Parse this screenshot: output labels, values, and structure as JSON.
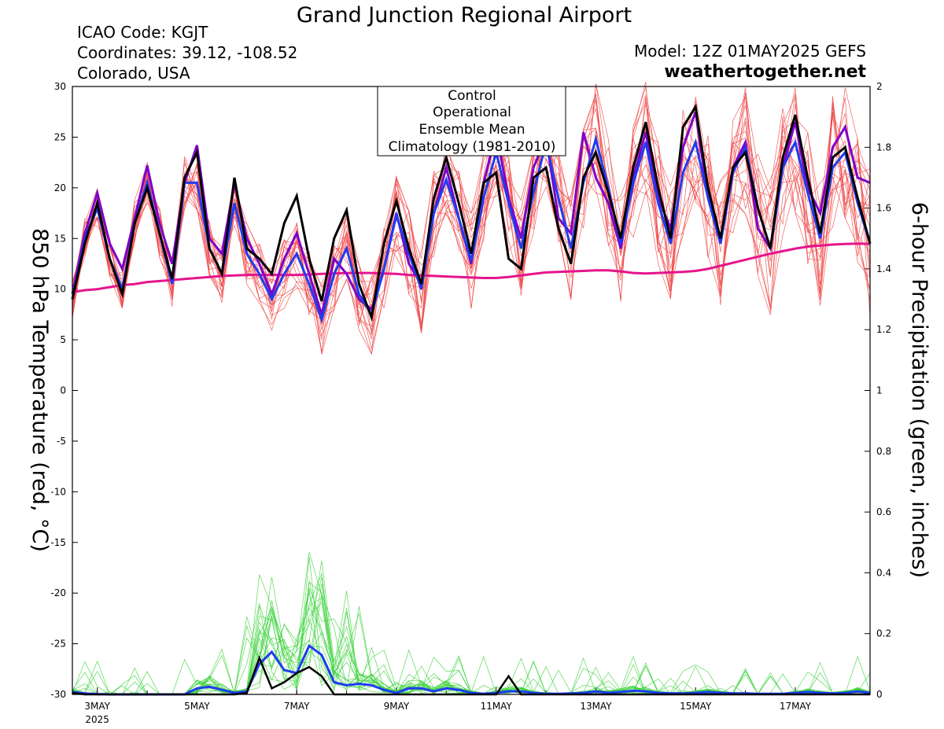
{
  "header": {
    "title": "Grand Junction Regional Airport",
    "icao": "ICAO Code: KGJT",
    "coordinates": "Coordinates: 39.12, -108.52",
    "location": "Colorado, USA",
    "model": "Model: 12Z 01MAY2025 GEFS",
    "site": "weathertogether.net"
  },
  "colors": {
    "control": "#000000",
    "operational": "#7d00c8",
    "ensemble_mean": "#1e3cf0",
    "climatology": "#e6148c",
    "members_temp": "#f04646",
    "members_precip": "#3cd23c",
    "site": "#1e96f0"
  },
  "chart_data": {
    "type": "line",
    "x_unit": "days since 00Z 1 MAY 2025",
    "xlim": [
      1.5,
      17.5
    ],
    "x_ticks": [
      {
        "x": 2,
        "label": "3MAY",
        "sub": "2025"
      },
      {
        "x": 4,
        "label": "5MAY"
      },
      {
        "x": 6,
        "label": "7MAY"
      },
      {
        "x": 8,
        "label": "9MAY"
      },
      {
        "x": 10,
        "label": "11MAY"
      },
      {
        "x": 12,
        "label": "13MAY"
      },
      {
        "x": 14,
        "label": "15MAY"
      },
      {
        "x": 16,
        "label": "17MAY"
      }
    ],
    "y_left": {
      "label": "850 hPa Temperature (red, °C)",
      "ylim": [
        -30,
        30
      ],
      "ticks": [
        30,
        25,
        20,
        15,
        10,
        5,
        0,
        -5,
        -10,
        -15,
        -20,
        -25,
        -30
      ]
    },
    "y_right": {
      "label": "6-hour Precipitation (green, inches)",
      "ylim": [
        0,
        2
      ],
      "ticks": [
        2,
        1.8,
        1.6,
        1.4,
        1.2,
        1,
        0.8,
        0.6,
        0.4,
        0.2,
        0
      ]
    },
    "legend": {
      "position": "top-center",
      "entries": [
        "Control",
        "Operational",
        "Ensemble Mean",
        "Climatology (1981-2010)"
      ]
    },
    "temperature": {
      "x_start": 1.5,
      "dx": 0.25,
      "control": [
        9,
        14.5,
        18.5,
        13,
        9.5,
        16.5,
        20,
        15.5,
        11,
        21,
        23.5,
        14,
        11.5,
        21,
        14,
        13,
        11.5,
        16.5,
        19.2,
        13,
        8.8,
        15,
        17.8,
        10.5,
        7.2,
        14.5,
        18.7,
        14,
        10.5,
        19,
        23,
        18.5,
        13.5,
        20.5,
        21.5,
        13,
        12,
        21,
        22,
        16,
        12.5,
        21,
        23.5,
        19.5,
        15,
        22,
        26.5,
        20,
        15,
        26,
        28,
        20,
        15,
        22,
        23.5,
        18,
        14,
        23,
        27.2,
        21,
        15.5,
        23,
        24,
        19,
        14.5
      ],
      "operational": [
        9.5,
        15.5,
        19.5,
        14.5,
        12,
        17,
        22.2,
        16.5,
        12.5,
        20.5,
        24.2,
        15,
        13.5,
        20.5,
        15,
        12.5,
        9.5,
        13,
        15.5,
        11.5,
        7.5,
        13,
        11.5,
        9,
        8,
        12,
        17.5,
        12.5,
        10.5,
        17.5,
        22,
        17,
        12.5,
        20.5,
        25.5,
        19,
        15,
        22,
        25,
        17,
        15.5,
        25.5,
        21,
        18.5,
        14,
        21,
        25.5,
        19,
        16,
        24,
        27.5,
        19,
        14.5,
        22,
        24.5,
        16,
        14,
        22,
        26.5,
        20,
        17.5,
        24,
        26,
        21,
        20.5
      ],
      "ensemble_mean": [
        9,
        15,
        18,
        13,
        10,
        16.5,
        20.5,
        15.5,
        10.5,
        20.5,
        20.5,
        14,
        11.5,
        18.5,
        13.5,
        11.5,
        9,
        11.5,
        13.5,
        10.5,
        7,
        11.5,
        14,
        9.5,
        7.5,
        12,
        17.3,
        13.5,
        10,
        17.5,
        20.8,
        17,
        12.8,
        19,
        23.5,
        18.5,
        14,
        19.5,
        24.5,
        19,
        14,
        20.5,
        24.8,
        20,
        14.5,
        20.5,
        24.5,
        18.5,
        14.5,
        21.5,
        24.5,
        19,
        14.5,
        21.5,
        24,
        18,
        14,
        22,
        24.5,
        19.5,
        15,
        22,
        23.5,
        18.5,
        14.5
      ],
      "climatology": [
        9.7,
        9.9,
        10.0,
        10.2,
        10.4,
        10.5,
        10.7,
        10.8,
        10.9,
        11.0,
        11.1,
        11.2,
        11.3,
        11.35,
        11.4,
        11.4,
        11.4,
        11.4,
        11.4,
        11.45,
        11.5,
        11.55,
        11.6,
        11.6,
        11.6,
        11.55,
        11.5,
        11.4,
        11.35,
        11.3,
        11.25,
        11.2,
        11.15,
        11.1,
        11.1,
        11.2,
        11.35,
        11.5,
        11.65,
        11.7,
        11.75,
        11.8,
        11.85,
        11.85,
        11.75,
        11.6,
        11.55,
        11.6,
        11.65,
        11.7,
        11.8,
        12.0,
        12.3,
        12.6,
        12.9,
        13.2,
        13.5,
        13.75,
        14.0,
        14.2,
        14.3,
        14.4,
        14.45,
        14.5,
        14.45
      ]
    },
    "precipitation": {
      "x_start": 1.5,
      "dx": 0.25,
      "control": [
        0.005,
        0,
        0,
        0,
        0,
        0,
        0,
        0,
        0,
        0,
        0,
        0,
        0,
        0,
        0.005,
        0.12,
        0.02,
        0.04,
        0.07,
        0.09,
        0.06,
        0,
        0,
        0,
        0,
        0,
        0,
        0,
        0,
        0,
        0,
        0,
        0,
        0,
        0,
        0.06,
        0,
        0,
        0,
        0,
        0,
        0,
        0,
        0,
        0,
        0,
        0,
        0,
        0,
        0,
        0,
        0,
        0,
        0,
        0,
        0,
        0,
        0,
        0,
        0,
        0,
        0,
        0,
        0,
        0
      ],
      "ensemble_mean": [
        0.008,
        0.003,
        0.001,
        0,
        0,
        0,
        0,
        0,
        0,
        0,
        0.02,
        0.025,
        0.015,
        0.005,
        0.01,
        0.1,
        0.14,
        0.08,
        0.07,
        0.16,
        0.13,
        0.04,
        0.03,
        0.035,
        0.03,
        0.015,
        0.005,
        0.02,
        0.02,
        0.01,
        0.02,
        0.015,
        0.005,
        0.002,
        0.005,
        0.01,
        0.01,
        0.005,
        0.002,
        0.002,
        0.003,
        0.005,
        0.01,
        0.005,
        0.008,
        0.012,
        0.01,
        0.005,
        0.003,
        0.003,
        0.005,
        0.008,
        0.005,
        0.003,
        0.003,
        0.002,
        0.002,
        0.002,
        0.005,
        0.008,
        0.005,
        0.003,
        0.005,
        0.01,
        0.005
      ]
    }
  }
}
